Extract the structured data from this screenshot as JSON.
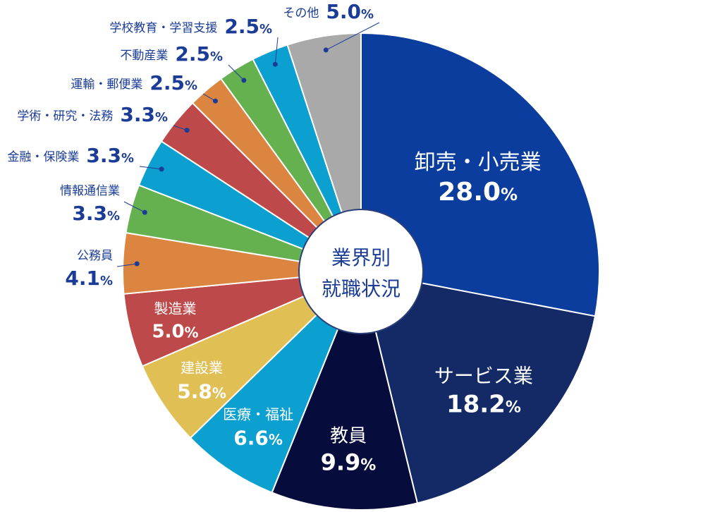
{
  "chart_data": {
    "type": "pie",
    "title": "",
    "center_label": [
      "業界別",
      "就職状況"
    ],
    "unit": "%",
    "slices": [
      {
        "label": "卸売・小売業",
        "value": 28.0,
        "color": "#0a3d9e",
        "text_color": "#ffffff"
      },
      {
        "label": "サービス業",
        "value": 18.2,
        "color": "#132a66",
        "text_color": "#ffffff"
      },
      {
        "label": "教員",
        "value": 9.9,
        "color": "#060d3c",
        "text_color": "#ffffff"
      },
      {
        "label": "医療・福祉",
        "value": 6.6,
        "color": "#0ba0cf",
        "text_color": "#ffffff"
      },
      {
        "label": "建設業",
        "value": 5.8,
        "color": "#e0bf55",
        "text_color": "#ffffff"
      },
      {
        "label": "製造業",
        "value": 5.0,
        "color": "#be494a",
        "text_color": "#ffffff"
      },
      {
        "label": "公務員",
        "value": 4.1,
        "color": "#dc8540",
        "text_color": "#1a3c96"
      },
      {
        "label": "情報通信業",
        "value": 3.3,
        "color": "#65b14f",
        "text_color": "#1a3c96"
      },
      {
        "label": "金融・保険業",
        "value": 3.3,
        "color": "#0ba0cf",
        "text_color": "#1a3c96"
      },
      {
        "label": "学術・研究・法務",
        "value": 3.3,
        "color": "#be494a",
        "text_color": "#1a3c96"
      },
      {
        "label": "運輸・郵便業",
        "value": 2.5,
        "color": "#dc8540",
        "text_color": "#1a3c96"
      },
      {
        "label": "不動産業",
        "value": 2.5,
        "color": "#65b14f",
        "text_color": "#1a3c96"
      },
      {
        "label": "学校教育・学習支援",
        "value": 2.5,
        "color": "#0ba0cf",
        "text_color": "#1a3c96"
      },
      {
        "label": "その他",
        "value": 5.0,
        "color": "#a9a9a9",
        "text_color": "#1a3c96"
      }
    ]
  }
}
